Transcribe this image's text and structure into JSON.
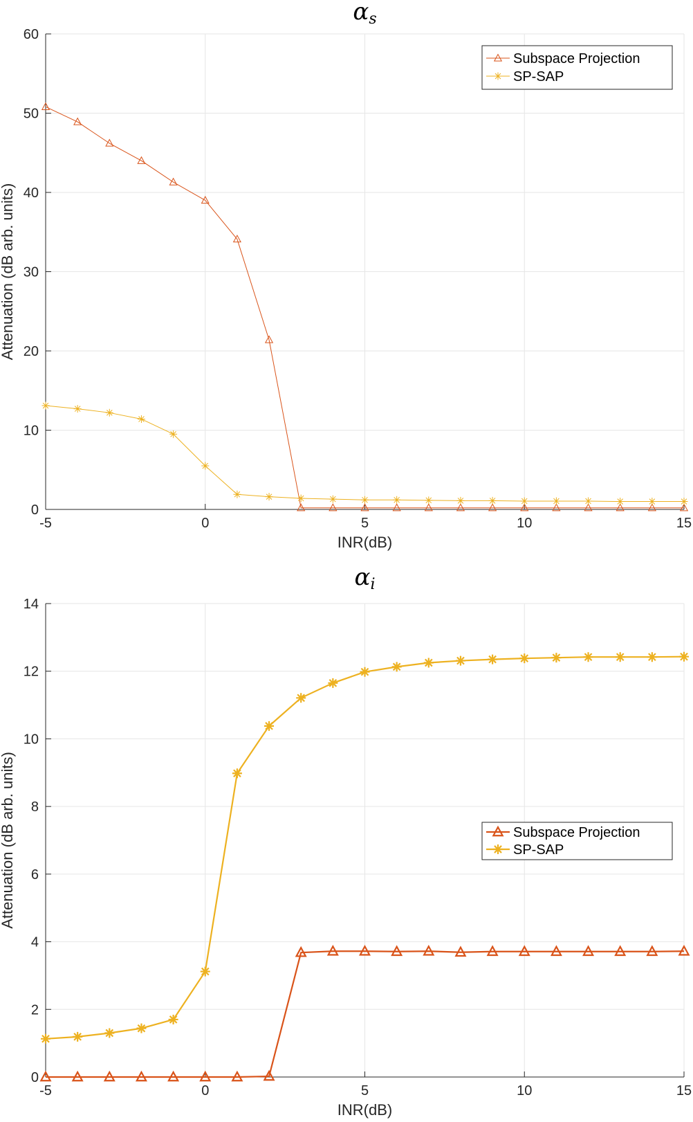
{
  "chart_data": [
    {
      "type": "line",
      "title": "αs",
      "title_main": "α",
      "title_sub": "s",
      "xlabel": "INR(dB)",
      "ylabel": "Attenuation (dB arb. units)",
      "xlim": [
        -5,
        15
      ],
      "ylim": [
        0,
        60
      ],
      "xticks": [
        "-5",
        "0",
        "5",
        "10",
        "15"
      ],
      "yticks": [
        "0",
        "10",
        "20",
        "30",
        "40",
        "50",
        "60"
      ],
      "grid": true,
      "legend_position": "top-right",
      "x": [
        -5,
        -4,
        -3,
        -2,
        -1,
        0,
        1,
        2,
        3,
        4,
        5,
        6,
        7,
        8,
        9,
        10,
        11,
        12,
        13,
        14,
        15
      ],
      "series": [
        {
          "name": "Subspace Projection",
          "marker": "triangle",
          "color": "#D95319",
          "values": [
            50.8,
            48.9,
            46.2,
            44.0,
            41.3,
            39.0,
            34.1,
            21.4,
            0.2,
            0.2,
            0.2,
            0.2,
            0.2,
            0.2,
            0.2,
            0.2,
            0.2,
            0.2,
            0.2,
            0.2,
            0.2
          ]
        },
        {
          "name": "SP-SAP",
          "marker": "asterisk",
          "color": "#EDB120",
          "values": [
            13.1,
            12.7,
            12.2,
            11.4,
            9.5,
            5.5,
            1.9,
            1.6,
            1.4,
            1.3,
            1.2,
            1.2,
            1.15,
            1.1,
            1.1,
            1.05,
            1.05,
            1.05,
            1.0,
            1.0,
            1.0
          ]
        }
      ]
    },
    {
      "type": "line",
      "title": "αi",
      "title_main": "α",
      "title_sub": "i",
      "xlabel": "INR(dB)",
      "ylabel": "Attenuation (dB arb. units)",
      "xlim": [
        -5,
        15
      ],
      "ylim": [
        0,
        14
      ],
      "xticks": [
        "-5",
        "0",
        "5",
        "10",
        "15"
      ],
      "yticks": [
        "0",
        "2",
        "4",
        "6",
        "8",
        "10",
        "12",
        "14"
      ],
      "grid": true,
      "legend_position": "center-right",
      "x": [
        -5,
        -4,
        -3,
        -2,
        -1,
        0,
        1,
        2,
        3,
        4,
        5,
        6,
        7,
        8,
        9,
        10,
        11,
        12,
        13,
        14,
        15
      ],
      "series": [
        {
          "name": "Subspace Projection",
          "marker": "triangle",
          "color": "#D95319",
          "values": [
            0,
            0,
            0,
            0,
            0,
            0,
            0,
            0.02,
            3.68,
            3.72,
            3.72,
            3.71,
            3.72,
            3.69,
            3.71,
            3.71,
            3.71,
            3.71,
            3.71,
            3.71,
            3.72
          ]
        },
        {
          "name": "SP-SAP",
          "marker": "asterisk",
          "color": "#EDB120",
          "values": [
            1.13,
            1.19,
            1.3,
            1.44,
            1.7,
            3.12,
            8.98,
            10.38,
            11.21,
            11.65,
            11.98,
            12.13,
            12.25,
            12.31,
            12.35,
            12.38,
            12.4,
            12.42,
            12.42,
            12.42,
            12.43
          ]
        }
      ]
    }
  ]
}
